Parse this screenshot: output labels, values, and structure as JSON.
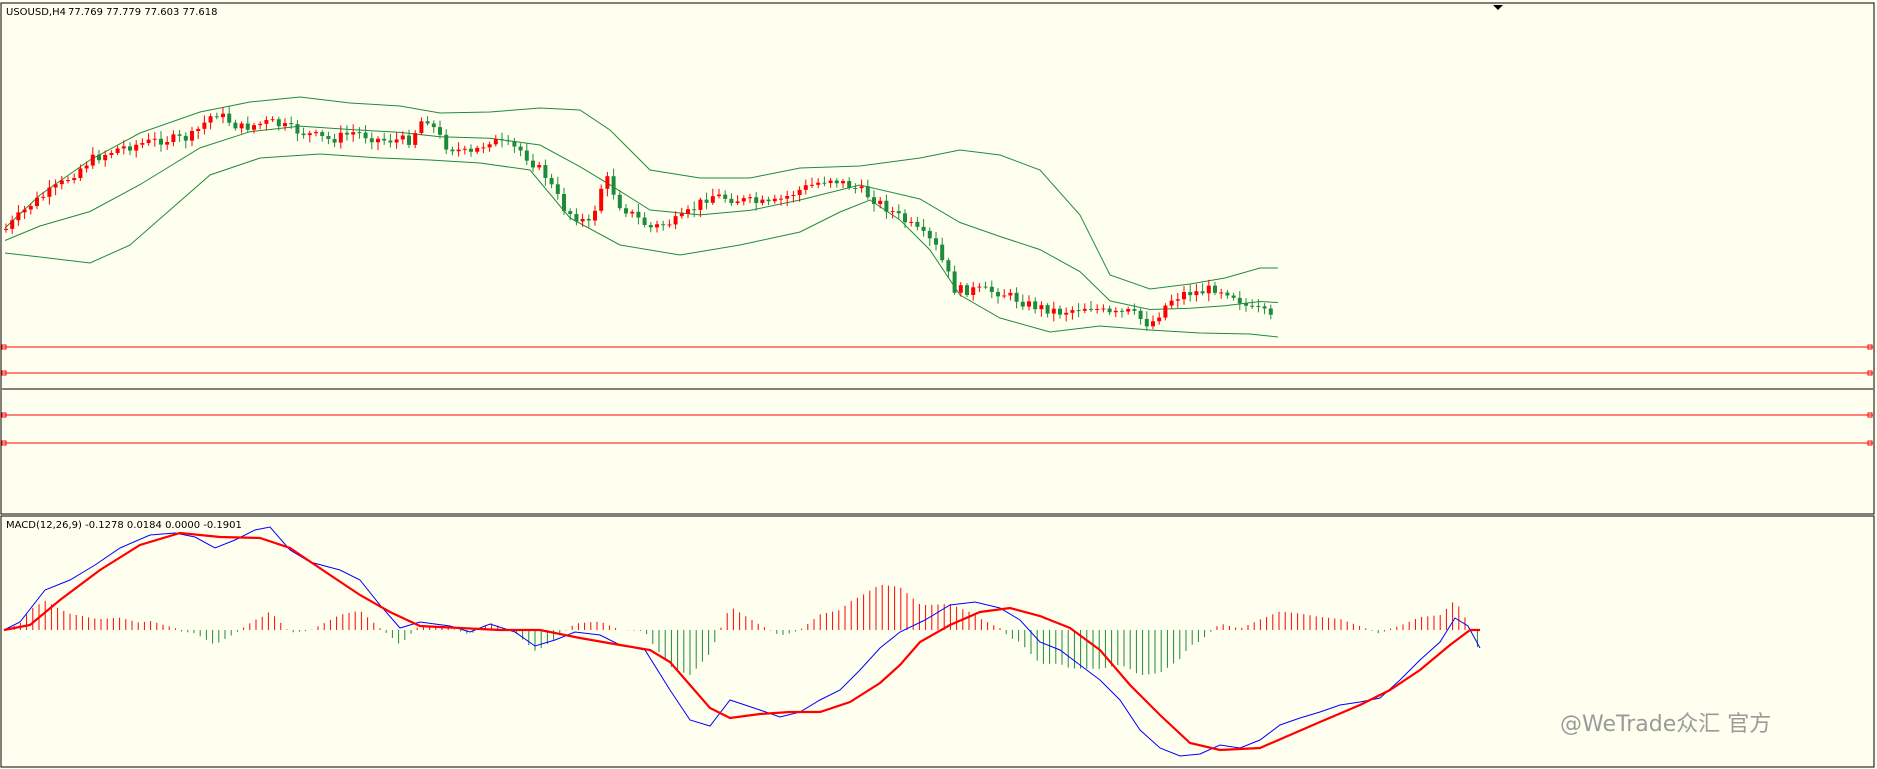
{
  "main_panel": {
    "header_symbol": "USOUSD,H4",
    "header_ohlc": "77.769 77.779 77.603 77.618"
  },
  "indicator_panel": {
    "header": "MACD(12,26,9) -0.1278 0.0184 0.0000 -0.1901"
  },
  "watermark": "@WeTrade众汇 官方",
  "colors": {
    "background": "#fffff0",
    "bull_candle": "#ff0000",
    "bear_candle": "#1e8b3c",
    "bollinger": "#1e8b3c",
    "level_lines": "#ff0000",
    "current_price_line": "#000000",
    "macd_line": "#0000ff",
    "signal_line": "#ff0000",
    "hist_positive": "#ff0000",
    "hist_negative": "#1e8b3c"
  },
  "chart_data": [
    {
      "type": "candlestick",
      "symbol": "USOUSD",
      "timeframe": "H4",
      "indicators": [
        "Bollinger Bands",
        "horizontal levels"
      ],
      "last_bar": {
        "open": 77.769,
        "high": 77.779,
        "low": 77.603,
        "close": 77.618
      },
      "price_axis_visible": false,
      "grid": false
    },
    {
      "type": "line",
      "indicator": "MACD",
      "params": [
        12,
        26,
        9
      ],
      "values": {
        "macd": -0.1278,
        "signal": 0.0184,
        "hist_pos": 0.0,
        "hist_neg": -0.1901
      },
      "series": [
        {
          "name": "MACD"
        },
        {
          "name": "Signal"
        },
        {
          "name": "Histogram"
        }
      ]
    }
  ]
}
